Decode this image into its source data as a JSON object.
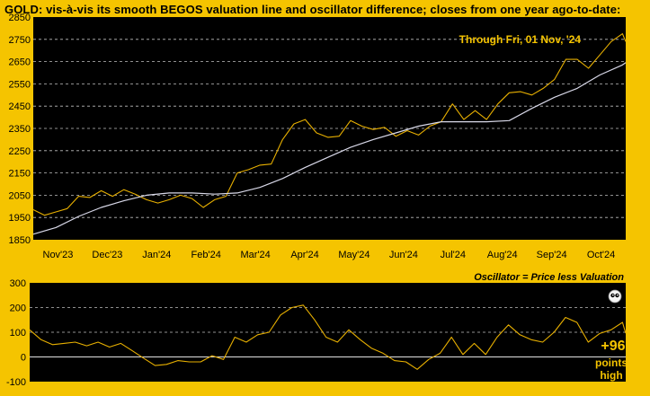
{
  "title": "GOLD:  vis-à-vis its smooth BEGOS valuation line and oscillator difference; closes from one year ago-to-date:",
  "colors": {
    "background": "#f5c400",
    "plot_background": "#000000",
    "price_line": "#e8b000",
    "valuation_line": "#d8d8e8",
    "oscillator_line": "#e8b000",
    "gridline": "#bfbfbf",
    "annotation_text": "#f5c400"
  },
  "chart_data": [
    {
      "type": "line",
      "annotation": "Through Fri, 01 Nov, '24",
      "xlabel": "",
      "ylabel": "",
      "x_tick_labels": [
        "Nov'23",
        "Dec'23",
        "Jan'24",
        "Feb'24",
        "Mar'24",
        "Apr'24",
        "May'24",
        "Jun'24",
        "Jul'24",
        "Aug'24",
        "Sep'24",
        "Oct'24"
      ],
      "y_ticks": [
        1850,
        1950,
        2050,
        2150,
        2250,
        2350,
        2450,
        2550,
        2650,
        2750,
        2850
      ],
      "ylim": [
        1850,
        2850
      ],
      "grid": true,
      "series": [
        {
          "key": "price",
          "x": [
            "2023-11-01",
            "2023-11-08",
            "2023-11-15",
            "2023-11-22",
            "2023-11-29",
            "2023-12-06",
            "2023-12-13",
            "2023-12-20",
            "2023-12-27",
            "2024-01-03",
            "2024-01-10",
            "2024-01-17",
            "2024-01-24",
            "2024-01-31",
            "2024-02-07",
            "2024-02-14",
            "2024-02-21",
            "2024-02-28",
            "2024-03-06",
            "2024-03-13",
            "2024-03-20",
            "2024-03-27",
            "2024-04-03",
            "2024-04-10",
            "2024-04-17",
            "2024-04-24",
            "2024-05-01",
            "2024-05-08",
            "2024-05-15",
            "2024-05-22",
            "2024-05-29",
            "2024-06-05",
            "2024-06-12",
            "2024-06-19",
            "2024-06-26",
            "2024-07-03",
            "2024-07-10",
            "2024-07-17",
            "2024-07-24",
            "2024-07-31",
            "2024-08-07",
            "2024-08-14",
            "2024-08-21",
            "2024-08-28",
            "2024-09-04",
            "2024-09-11",
            "2024-09-18",
            "2024-09-25",
            "2024-10-02",
            "2024-10-09",
            "2024-10-16",
            "2024-10-23",
            "2024-10-30",
            "2024-11-01"
          ],
          "values": [
            1985,
            1960,
            1975,
            1990,
            2045,
            2040,
            2070,
            2045,
            2075,
            2055,
            2030,
            2015,
            2030,
            2050,
            2035,
            1995,
            2030,
            2045,
            2150,
            2165,
            2185,
            2190,
            2300,
            2370,
            2390,
            2330,
            2310,
            2315,
            2385,
            2360,
            2345,
            2355,
            2315,
            2340,
            2320,
            2360,
            2380,
            2460,
            2390,
            2430,
            2390,
            2460,
            2510,
            2515,
            2500,
            2530,
            2570,
            2660,
            2660,
            2620,
            2680,
            2740,
            2775,
            2740
          ]
        },
        {
          "key": "valuation",
          "x": [
            "2023-11-01",
            "2023-11-15",
            "2023-11-29",
            "2023-12-13",
            "2023-12-27",
            "2024-01-10",
            "2024-01-24",
            "2024-02-07",
            "2024-02-21",
            "2024-03-06",
            "2024-03-20",
            "2024-04-03",
            "2024-04-17",
            "2024-05-01",
            "2024-05-15",
            "2024-05-29",
            "2024-06-12",
            "2024-06-26",
            "2024-07-10",
            "2024-07-24",
            "2024-08-07",
            "2024-08-21",
            "2024-09-04",
            "2024-09-18",
            "2024-10-02",
            "2024-10-16",
            "2024-10-30",
            "2024-11-01"
          ],
          "values": [
            1875,
            1905,
            1955,
            1995,
            2025,
            2050,
            2060,
            2060,
            2055,
            2060,
            2085,
            2125,
            2175,
            2220,
            2265,
            2300,
            2330,
            2360,
            2380,
            2380,
            2380,
            2385,
            2440,
            2490,
            2530,
            2590,
            2635,
            2645
          ]
        }
      ]
    },
    {
      "type": "line",
      "title": "Oscillator = Price less Valuation",
      "callout": {
        "value": "+96",
        "line1": "points",
        "line2": "high"
      },
      "y_ticks": [
        -100,
        0,
        100,
        200,
        300
      ],
      "ylim": [
        -100,
        300
      ],
      "grid": true,
      "series": [
        {
          "key": "oscillator",
          "x": [
            "2023-11-01",
            "2023-11-08",
            "2023-11-15",
            "2023-11-22",
            "2023-11-29",
            "2023-12-06",
            "2023-12-13",
            "2023-12-20",
            "2023-12-27",
            "2024-01-03",
            "2024-01-10",
            "2024-01-17",
            "2024-01-24",
            "2024-01-31",
            "2024-02-07",
            "2024-02-14",
            "2024-02-21",
            "2024-02-28",
            "2024-03-06",
            "2024-03-13",
            "2024-03-20",
            "2024-03-27",
            "2024-04-03",
            "2024-04-10",
            "2024-04-17",
            "2024-04-24",
            "2024-05-01",
            "2024-05-08",
            "2024-05-15",
            "2024-05-22",
            "2024-05-29",
            "2024-06-05",
            "2024-06-12",
            "2024-06-19",
            "2024-06-26",
            "2024-07-03",
            "2024-07-10",
            "2024-07-17",
            "2024-07-24",
            "2024-07-31",
            "2024-08-07",
            "2024-08-14",
            "2024-08-21",
            "2024-08-28",
            "2024-09-04",
            "2024-09-11",
            "2024-09-18",
            "2024-09-25",
            "2024-10-02",
            "2024-10-09",
            "2024-10-16",
            "2024-10-23",
            "2024-10-30",
            "2024-11-01"
          ],
          "values": [
            110,
            70,
            50,
            55,
            60,
            45,
            60,
            40,
            55,
            25,
            -5,
            -35,
            -30,
            -15,
            -20,
            -20,
            5,
            -10,
            80,
            60,
            90,
            100,
            170,
            200,
            210,
            150,
            80,
            60,
            110,
            70,
            35,
            15,
            -15,
            -20,
            -50,
            -10,
            15,
            80,
            10,
            55,
            10,
            80,
            130,
            90,
            70,
            60,
            100,
            160,
            140,
            60,
            95,
            110,
            140,
            96
          ]
        }
      ]
    }
  ]
}
